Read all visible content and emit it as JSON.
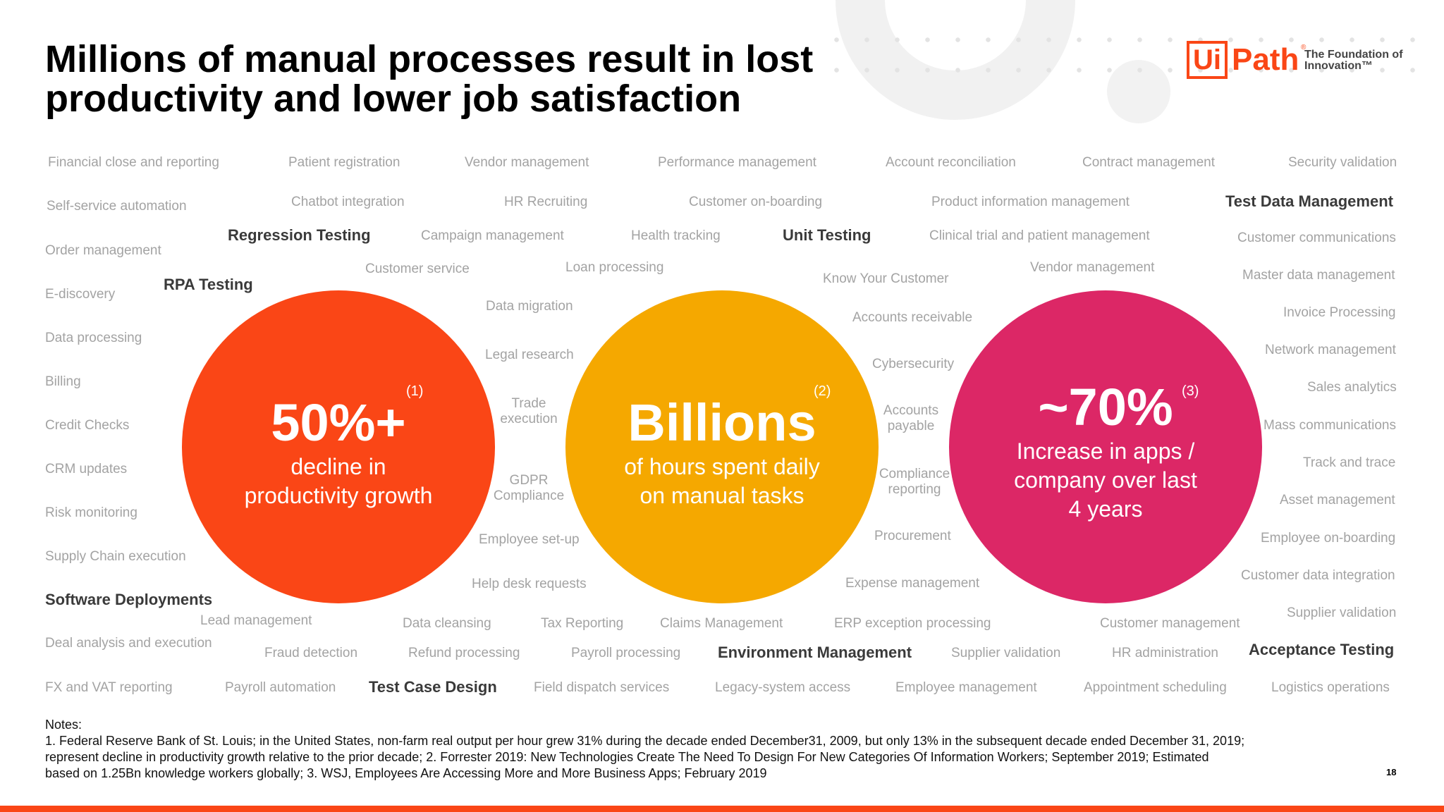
{
  "title": "Millions of manual processes result in lost productivity and lower job satisfaction",
  "logo": {
    "mark": "Ui",
    "path": "Path",
    "reg": "®",
    "tagline": "The Foundation of Innovation™"
  },
  "colors": {
    "brand": "#fa4616",
    "orange": "#f5a800",
    "pink": "#dc2766"
  },
  "circles": [
    {
      "value": "50%+",
      "ref": "(1)",
      "caption_line1": "decline in",
      "caption_line2": "productivity growth",
      "caption_line3": ""
    },
    {
      "value": "Billions",
      "ref": "(2)",
      "caption_line1": "of hours spent daily",
      "caption_line2": "on manual tasks",
      "caption_line3": ""
    },
    {
      "value": "~70%",
      "ref": "(3)",
      "caption_line1": "Increase in apps /",
      "caption_line2": "company over last",
      "caption_line3": "4 years"
    }
  ],
  "processes": [
    "Financial close and reporting",
    "Patient registration",
    "Vendor management",
    "Performance management",
    "Account reconciliation",
    "Contract management",
    "Security validation",
    "Self-service automation",
    "Chatbot integration",
    "HR Recruiting",
    "Customer on-boarding",
    "Product information management",
    "Test Data Management",
    "Regression Testing",
    "Campaign management",
    "Health tracking",
    "Unit Testing",
    "Clinical trial and patient management",
    "Customer communications",
    "Order management",
    "Customer service",
    "Loan processing",
    "Vendor management",
    "Master data management",
    "E-discovery",
    "RPA Testing",
    "Know Your Customer",
    "Data migration",
    "Invoice Processing",
    "Accounts receivable",
    "Data processing",
    "Legal research",
    "Network management",
    "Cybersecurity",
    "Billing",
    "Sales analytics",
    "Trade execution",
    "Accounts payable",
    "Credit Checks",
    "Mass communications",
    "Track and trace",
    "CRM updates",
    "GDPR Compliance",
    "Compliance reporting",
    "Asset management",
    "Risk monitoring",
    "Employee on-boarding",
    "Employee set-up",
    "Procurement",
    "Supply Chain execution",
    "Customer data integration",
    "Help desk requests",
    "Expense management",
    "Software Deployments",
    "Supplier validation",
    "Lead management",
    "Data cleansing",
    "Tax Reporting",
    "Claims Management",
    "ERP exception processing",
    "Customer management",
    "Deal analysis and execution",
    "Acceptance Testing",
    "Fraud detection",
    "Refund processing",
    "Payroll processing",
    "Environment Management",
    "Supplier validation",
    "HR administration",
    "FX and VAT reporting",
    "Payroll automation",
    "Test Case Design",
    "Field dispatch services",
    "Legacy-system access",
    "Employee management",
    "Appointment scheduling",
    "Logistics operations"
  ],
  "notes": {
    "heading": "Notes:",
    "line1": "1. Federal Reserve Bank of St. Louis; in the United States, non-farm real output per hour grew 31% during the decade ended December31, 2009, but only 13% in the subsequent decade ended December 31, 2019;",
    "line2": "represent decline in productivity growth relative to the prior decade; 2. Forrester 2019: New Technologies Create The Need To Design For New Categories Of Information Workers; September 2019; Estimated",
    "line3": "based on 1.25Bn knowledge workers globally; 3. WSJ, Employees Are Accessing More and More Business Apps; February 2019"
  },
  "page_number": "18"
}
